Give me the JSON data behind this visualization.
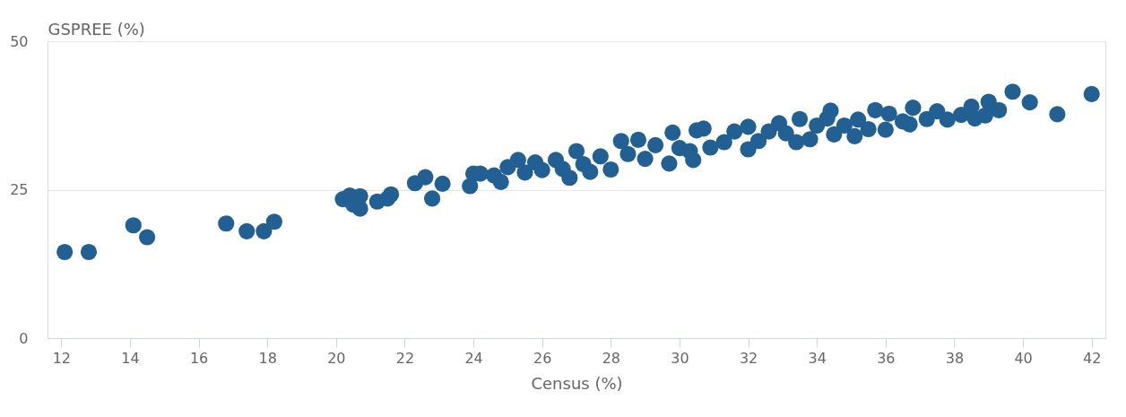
{
  "chart_data": {
    "type": "scatter",
    "xlabel": "Census (%)",
    "ylabel": "GSPREE (%)",
    "xlim": [
      11.6,
      42.4
    ],
    "xticks": [
      12,
      14,
      16,
      18,
      20,
      22,
      24,
      26,
      28,
      30,
      32,
      34,
      36,
      38,
      40,
      42
    ],
    "ylim": [
      0,
      50
    ],
    "yticks": [
      0,
      25,
      50
    ],
    "grid": "y",
    "marker": "circle",
    "legend": false,
    "series": [
      {
        "color": "#225f93",
        "x": [
          12.1,
          12.8,
          14.1,
          14.5,
          16.8,
          17.4,
          17.9,
          18.2,
          20.2,
          20.4,
          20.5,
          20.7,
          20.7,
          21.2,
          21.5,
          21.6,
          22.3,
          22.6,
          22.8,
          23.1,
          23.9,
          24.0,
          24.2,
          24.6,
          24.8,
          25.0,
          25.3,
          25.5,
          25.8,
          26.0,
          26.4,
          26.6,
          26.8,
          27.0,
          27.2,
          27.4,
          27.7,
          28.0,
          28.3,
          28.5,
          28.8,
          29.0,
          29.3,
          29.7,
          29.8,
          30.0,
          30.3,
          30.4,
          30.5,
          30.7,
          30.9,
          31.3,
          31.6,
          32.0,
          32.0,
          32.3,
          32.6,
          32.9,
          33.1,
          33.4,
          33.5,
          33.8,
          34.0,
          34.3,
          34.4,
          34.5,
          34.8,
          35.1,
          35.2,
          35.5,
          35.7,
          36.0,
          36.1,
          36.5,
          36.7,
          36.8,
          37.2,
          37.5,
          37.8,
          38.2,
          38.5,
          38.6,
          38.9,
          39.0,
          39.3,
          39.7,
          40.2,
          41.0,
          42.0
        ],
        "values": [
          14.5,
          14.5,
          19.0,
          17.0,
          19.3,
          18.0,
          18.0,
          19.6,
          23.4,
          24.0,
          22.5,
          21.8,
          23.9,
          23.0,
          23.5,
          24.2,
          26.1,
          27.1,
          23.5,
          26.0,
          25.6,
          27.7,
          27.7,
          27.4,
          26.3,
          28.8,
          30.0,
          27.9,
          29.6,
          28.3,
          30.0,
          28.5,
          27.0,
          31.5,
          29.3,
          28.0,
          30.6,
          28.4,
          33.2,
          31.0,
          33.4,
          30.2,
          32.5,
          29.4,
          34.6,
          32.0,
          31.5,
          30.0,
          35.0,
          35.3,
          32.1,
          33.0,
          34.8,
          31.8,
          35.6,
          33.2,
          34.8,
          36.2,
          34.5,
          33.0,
          36.9,
          33.5,
          35.8,
          37.0,
          38.3,
          34.3,
          35.8,
          34.0,
          36.8,
          35.2,
          38.4,
          35.1,
          37.8,
          36.5,
          36.0,
          38.8,
          36.9,
          38.2,
          36.8,
          37.6,
          39.0,
          37.0,
          37.5,
          39.8,
          38.4,
          41.5,
          39.7,
          37.7,
          41.1
        ]
      }
    ]
  }
}
